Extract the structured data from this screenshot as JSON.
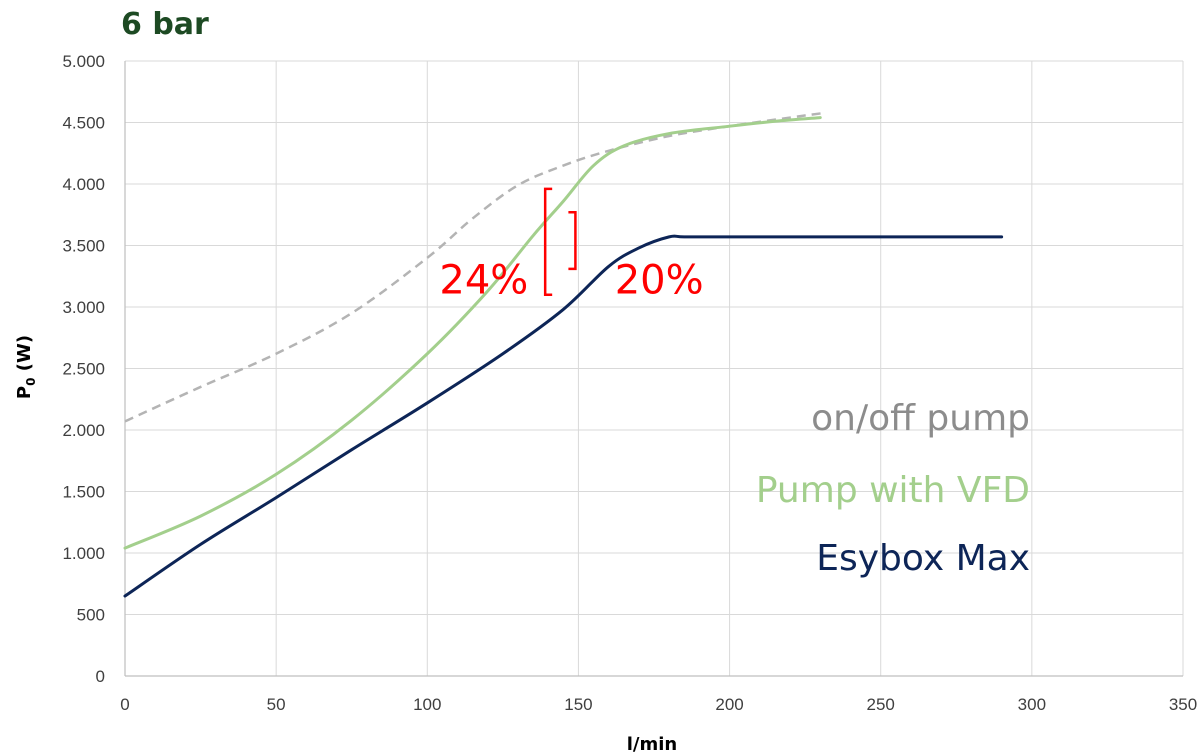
{
  "chart_data": {
    "type": "line",
    "title": "6 bar",
    "xlabel": "l/min",
    "ylabel_main": "P",
    "ylabel_sub": "0",
    "ylabel_unit": " (W)",
    "xlim": [
      0,
      350
    ],
    "ylim": [
      0,
      5000
    ],
    "xticks": [
      {
        "value": 0,
        "label": "0"
      },
      {
        "value": 50,
        "label": "50"
      },
      {
        "value": 100,
        "label": "100"
      },
      {
        "value": 150,
        "label": "150"
      },
      {
        "value": 200,
        "label": "200"
      },
      {
        "value": 250,
        "label": "250"
      },
      {
        "value": 300,
        "label": "300"
      },
      {
        "value": 350,
        "label": "350"
      }
    ],
    "yticks": [
      {
        "value": 0,
        "label": "0"
      },
      {
        "value": 500,
        "label": "500"
      },
      {
        "value": 1000,
        "label": "1.000"
      },
      {
        "value": 1500,
        "label": "1.500"
      },
      {
        "value": 2000,
        "label": "2.000"
      },
      {
        "value": 2500,
        "label": "2.500"
      },
      {
        "value": 3000,
        "label": "3.000"
      },
      {
        "value": 3500,
        "label": "3.500"
      },
      {
        "value": 4000,
        "label": "4.000"
      },
      {
        "value": 4500,
        "label": "4.500"
      },
      {
        "value": 5000,
        "label": "5.000"
      }
    ],
    "grid": true,
    "series": [
      {
        "name": "on/off pump",
        "color": "#b4b4b4",
        "dashed": true,
        "points": [
          [
            0,
            2070
          ],
          [
            25,
            2350
          ],
          [
            50,
            2620
          ],
          [
            75,
            2950
          ],
          [
            100,
            3400
          ],
          [
            115,
            3720
          ],
          [
            130,
            3990
          ],
          [
            145,
            4150
          ],
          [
            160,
            4270
          ],
          [
            180,
            4390
          ],
          [
            200,
            4470
          ],
          [
            220,
            4540
          ],
          [
            232,
            4580
          ]
        ]
      },
      {
        "name": "Pump with VFD",
        "color": "#a3cf8c",
        "dashed": false,
        "points": [
          [
            0,
            1040
          ],
          [
            25,
            1300
          ],
          [
            50,
            1640
          ],
          [
            75,
            2080
          ],
          [
            100,
            2620
          ],
          [
            120,
            3130
          ],
          [
            135,
            3580
          ],
          [
            145,
            3860
          ],
          [
            155,
            4150
          ],
          [
            165,
            4310
          ],
          [
            180,
            4410
          ],
          [
            200,
            4470
          ],
          [
            215,
            4510
          ],
          [
            230,
            4540
          ]
        ]
      },
      {
        "name": "Esybox Max",
        "color": "#0d2557",
        "dashed": false,
        "points": [
          [
            0,
            650
          ],
          [
            25,
            1070
          ],
          [
            50,
            1450
          ],
          [
            75,
            1840
          ],
          [
            100,
            2220
          ],
          [
            125,
            2620
          ],
          [
            145,
            2980
          ],
          [
            160,
            3330
          ],
          [
            170,
            3480
          ],
          [
            180,
            3570
          ],
          [
            185,
            3570
          ],
          [
            200,
            3570
          ],
          [
            250,
            3570
          ],
          [
            290,
            3570
          ]
        ]
      }
    ],
    "annotations": [
      {
        "text": "24%",
        "x": 104,
        "y": 3110
      },
      {
        "text": "20%",
        "x": 162,
        "y": 3110
      }
    ],
    "brackets": [
      {
        "x": 139,
        "y_low": 3100,
        "y_high": 3960,
        "side": "open-right"
      },
      {
        "x": 149,
        "y_low": 3310,
        "y_high": 3770,
        "side": "open-left"
      }
    ],
    "legend_position": "right-middle"
  }
}
